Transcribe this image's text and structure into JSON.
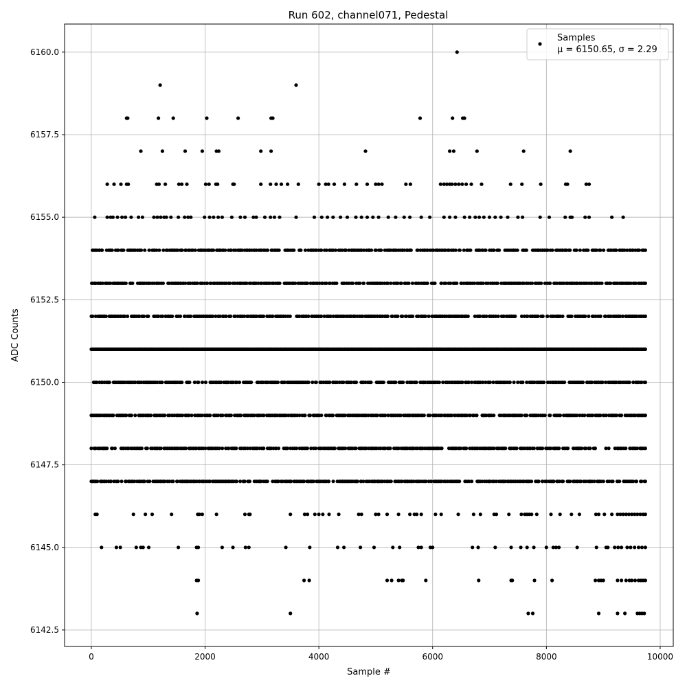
{
  "chart_data": {
    "type": "scatter",
    "title": "Run 602, channel071, Pedestal",
    "xlabel": "Sample #",
    "ylabel": "ADC Counts",
    "xlim": [
      -470,
      10230
    ],
    "ylim": [
      6142.0,
      6160.85
    ],
    "x_ticks": [
      0,
      2000,
      4000,
      6000,
      8000,
      10000
    ],
    "x_tick_labels": [
      "0",
      "2000",
      "4000",
      "6000",
      "8000",
      "10000"
    ],
    "y_ticks": [
      6142.5,
      6145.0,
      6147.5,
      6150.0,
      6152.5,
      6155.0,
      6157.5,
      6160.0
    ],
    "y_tick_labels": [
      "6142.5",
      "6145.0",
      "6147.5",
      "6150.0",
      "6152.5",
      "6155.0",
      "6157.5",
      "6160.0"
    ],
    "grid": true,
    "legend_position": "top-right",
    "marker_color": "#000000",
    "series": [
      {
        "name": "Samples",
        "stats_label": "μ = 6150.65, σ = 2.29",
        "x_range": [
          0,
          9740
        ],
        "value_levels": [
          {
            "y": 6160,
            "x": [
              6430
            ]
          },
          {
            "y": 6159,
            "x": [
              1210,
              3600
            ]
          },
          {
            "y": 6158,
            "x": [
              620,
              640,
              1180,
              1440,
              2030,
              2580,
              3160,
              3190,
              5780,
              6350,
              6530,
              6560
            ]
          },
          {
            "y": 6157,
            "x": [
              870,
              1250,
              1650,
              1950,
              2200,
              2240,
              2980,
              3160,
              4820,
              6300,
              6370,
              6780,
              7600,
              8420
            ]
          },
          {
            "y": 6156,
            "x": [
              280,
              400,
              520,
              620,
              650,
              1150,
              1190,
              1300,
              1540,
              1590,
              1680,
              2010,
              2070,
              2190,
              2220,
              2490,
              2510,
              2980,
              3150,
              3250,
              3340,
              3450,
              3640,
              4000,
              4120,
              4170,
              4270,
              4450,
              4660,
              4850,
              5000,
              5050,
              5110,
              5530,
              5610,
              6140,
              6200,
              6250,
              6300,
              6340,
              6400,
              6460,
              6520,
              6590,
              6680,
              6860,
              7370,
              7570,
              7900,
              8340,
              8370,
              8700,
              8750
            ]
          },
          {
            "y": 6155,
            "x": [
              60,
              280,
              340,
              380,
              460,
              540,
              600,
              700,
              830,
              900,
              1100,
              1160,
              1220,
              1280,
              1320,
              1400,
              1530,
              1640,
              1700,
              1750,
              1990,
              2080,
              2150,
              2230,
              2300,
              2470,
              2620,
              2700,
              2850,
              2900,
              3050,
              3150,
              3220,
              3310,
              3600,
              3920,
              4050,
              4150,
              4250,
              4380,
              4500,
              4650,
              4750,
              4850,
              4950,
              5050,
              5220,
              5350,
              5500,
              5600,
              5800,
              5950,
              6200,
              6300,
              6400,
              6560,
              6650,
              6750,
              6820,
              6900,
              7000,
              7100,
              7200,
              7320,
              7500,
              7580,
              7890,
              8050,
              8330,
              8420,
              8450,
              8680,
              8750,
              9150,
              9350
            ]
          },
          {
            "y": 6154,
            "x_span": [
              20,
              9740
            ],
            "density": "dense"
          },
          {
            "y": 6153,
            "x_span": [
              0,
              9740
            ],
            "density": "dense"
          },
          {
            "y": 6152,
            "x_span": [
              0,
              9740
            ],
            "density": "dense"
          },
          {
            "y": 6151,
            "x_span": [
              0,
              9740
            ],
            "density": "very dense"
          },
          {
            "y": 6150,
            "x_span": [
              20,
              9740
            ],
            "density": "dense"
          },
          {
            "y": 6149,
            "x_span": [
              0,
              9740
            ],
            "density": "dense"
          },
          {
            "y": 6148,
            "x_span": [
              0,
              9740
            ],
            "density": "dense"
          },
          {
            "y": 6147,
            "x_span": [
              0,
              9740
            ],
            "density": "dense"
          },
          {
            "y": 6146,
            "x": [
              70,
              100,
              740,
              950,
              1070,
              1410,
              1870,
              1900,
              1950,
              2200,
              2700,
              2770,
              2790,
              3500,
              3750,
              3800,
              3930,
              4000,
              4070,
              4180,
              4350,
              4700,
              4750,
              5000,
              5050,
              5200,
              5400,
              5600,
              5680,
              5720,
              5800,
              6050,
              6150,
              6450,
              6720,
              6840,
              7080,
              7120,
              7340,
              7560,
              7620,
              7660,
              7700,
              7740,
              7830,
              8080,
              8240,
              8440,
              8580,
              8870,
              8920,
              9020,
              9150,
              9250,
              9300,
              9350,
              9400,
              9450,
              9500,
              9550,
              9600,
              9650,
              9700,
              9740
            ]
          },
          {
            "y": 6145,
            "x": [
              180,
              440,
              510,
              790,
              870,
              910,
              1010,
              1530,
              1850,
              1880,
              2300,
              2490,
              2710,
              2770,
              3420,
              3840,
              4330,
              4440,
              4730,
              4970,
              5300,
              5420,
              5750,
              5800,
              5960,
              6000,
              6700,
              6800,
              7100,
              7380,
              7550,
              7660,
              7780,
              8000,
              8120,
              8170,
              8220,
              8540,
              8880,
              9050,
              9080,
              9200,
              9260,
              9320,
              9420,
              9480,
              9550,
              9620,
              9680,
              9740
            ]
          },
          {
            "y": 6144,
            "x": [
              1850,
              1880,
              3740,
              3830,
              5200,
              5280,
              5400,
              5460,
              5480,
              5880,
              6810,
              7380,
              7400,
              7790,
              8100,
              8860,
              8920,
              8960,
              9000,
              9250,
              9320,
              9400,
              9460,
              9500,
              9560,
              9620,
              9660,
              9700,
              9740
            ]
          },
          {
            "y": 6143,
            "x": [
              1860,
              3500,
              7680,
              7760,
              8920,
              9250,
              9380,
              9600,
              9640,
              9680,
              9720
            ]
          }
        ]
      }
    ]
  }
}
